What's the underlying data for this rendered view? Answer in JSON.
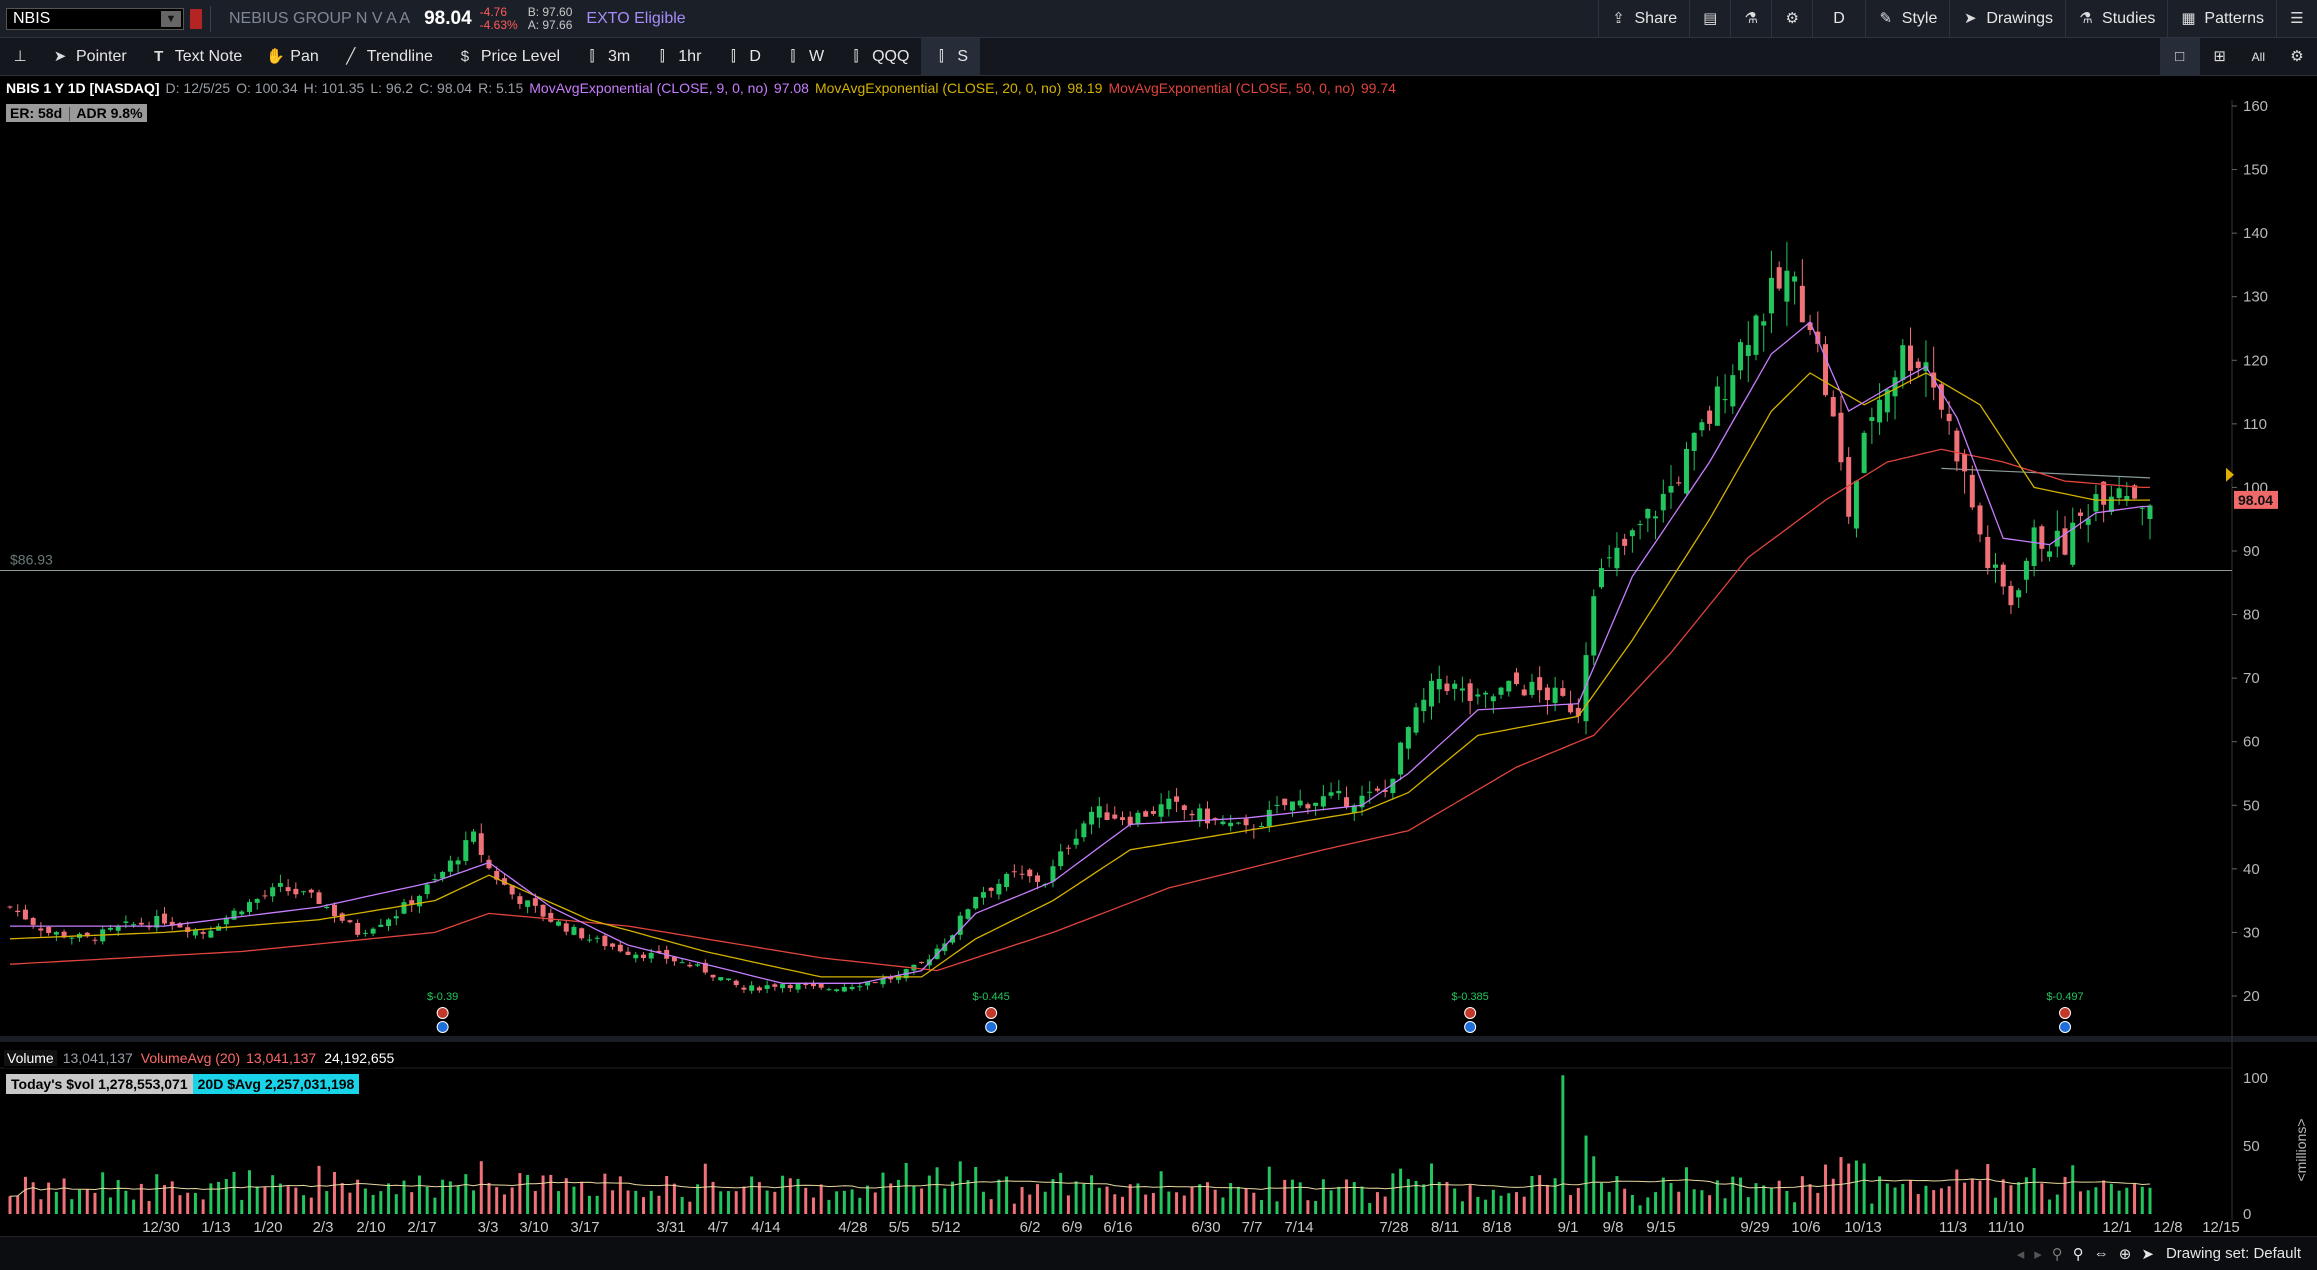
{
  "header": {
    "symbol": "NBIS",
    "company": "NEBIUS GROUP N V A A",
    "last": "98.04",
    "change": "-4.76",
    "change_pct": "-4.63%",
    "bid": "B: 97.60",
    "ask": "A: 97.66",
    "exto": "EXTO Eligible",
    "share": "Share",
    "aggregation": "D",
    "style": "Style",
    "drawings": "Drawings",
    "studies": "Studies",
    "patterns": "Patterns"
  },
  "toolbar": {
    "pointer": "Pointer",
    "text_note": "Text Note",
    "pan": "Pan",
    "trendline": "Trendline",
    "price_level": "Price Level",
    "presets": [
      "3m",
      "1hr",
      "D",
      "W",
      "QQQ",
      "S"
    ],
    "all_label": "All"
  },
  "studies": {
    "title": "NBIS 1 Y 1D [NASDAQ]",
    "date": "D: 12/5/25",
    "open": "O: 100.34",
    "high": "H: 101.35",
    "low": "L: 96.2",
    "close": "C: 98.04",
    "range": "R: 5.15",
    "ema9_label": "MovAvgExponential (CLOSE, 9, 0, no)",
    "ema9_value": "97.08",
    "ema20_label": "MovAvgExponential (CLOSE, 20, 0, no)",
    "ema20_value": "98.19",
    "ema50_label": "MovAvgExponential (CLOSE, 50, 0, no)",
    "ema50_value": "99.74",
    "er": "ER: 58d",
    "adr": "ADR 9.8%",
    "price_level_label": "$86.93",
    "last_price_tag": "98.04"
  },
  "volume": {
    "label": "Volume",
    "value": "13,041,137",
    "avg_label": "VolumeAvg (20)",
    "avg_value": "13,041,137",
    "other_value": "24,192,655",
    "today_dollar": "Today's $vol 1,278,553,071",
    "avg_dollar": "20D $Avg 2,257,031,198",
    "unit_label": "<millions>"
  },
  "dividends": [
    "$-0.39",
    "$-0.445",
    "$-0.385",
    "$-0.497"
  ],
  "status": {
    "drawing_set": "Drawing set: Default"
  },
  "colors": {
    "up": "#22c55e",
    "down": "#f07178",
    "ema9": "#c77dff",
    "ema20": "#d4b200",
    "ema50": "#e0443c",
    "price_tag": "#f06a6a"
  },
  "chart_data": {
    "type": "candlestick",
    "y_ticks": [
      20,
      30,
      40,
      50,
      60,
      70,
      80,
      90,
      100,
      110,
      120,
      130,
      140,
      150,
      160
    ],
    "ylim": [
      16,
      162
    ],
    "x_ticks": [
      "12/30",
      "1/13",
      "1/20",
      "2/3",
      "2/10",
      "2/17",
      "3/3",
      "3/10",
      "3/17",
      "3/31",
      "4/7",
      "4/14",
      "4/28",
      "5/5",
      "5/12",
      "6/2",
      "6/9",
      "6/16",
      "6/30",
      "7/7",
      "7/14",
      "7/28",
      "8/11",
      "8/18",
      "9/1",
      "9/8",
      "9/15",
      "9/29",
      "10/6",
      "10/13",
      "11/3",
      "11/10",
      "12/1",
      "12/8",
      "12/15"
    ],
    "close_path": [
      [
        0,
        34
      ],
      [
        5,
        30
      ],
      [
        10,
        29
      ],
      [
        15,
        31
      ],
      [
        20,
        32
      ],
      [
        25,
        30
      ],
      [
        30,
        34
      ],
      [
        35,
        37
      ],
      [
        40,
        35
      ],
      [
        45,
        30
      ],
      [
        50,
        33
      ],
      [
        55,
        38
      ],
      [
        60,
        45
      ],
      [
        62,
        40
      ],
      [
        65,
        36
      ],
      [
        70,
        32
      ],
      [
        75,
        29
      ],
      [
        80,
        27
      ],
      [
        85,
        26
      ],
      [
        90,
        24
      ],
      [
        95,
        21
      ],
      [
        100,
        22
      ],
      [
        105,
        21
      ],
      [
        110,
        22
      ],
      [
        115,
        23
      ],
      [
        118,
        25
      ],
      [
        122,
        30
      ],
      [
        125,
        36
      ],
      [
        130,
        39
      ],
      [
        134,
        38
      ],
      [
        137,
        44
      ],
      [
        140,
        49
      ],
      [
        145,
        48
      ],
      [
        150,
        50
      ],
      [
        155,
        48
      ],
      [
        160,
        46
      ],
      [
        165,
        50
      ],
      [
        170,
        51
      ],
      [
        175,
        51
      ],
      [
        178,
        52
      ],
      [
        181,
        62
      ],
      [
        185,
        70
      ],
      [
        190,
        66
      ],
      [
        195,
        69
      ],
      [
        200,
        67
      ],
      [
        203,
        65
      ],
      [
        205,
        85
      ],
      [
        210,
        92
      ],
      [
        215,
        100
      ],
      [
        220,
        111
      ],
      [
        225,
        125
      ],
      [
        230,
        133
      ],
      [
        233,
        127
      ],
      [
        236,
        110
      ],
      [
        238,
        96
      ],
      [
        241,
        112
      ],
      [
        245,
        121
      ],
      [
        248,
        120
      ],
      [
        252,
        106
      ],
      [
        256,
        88
      ],
      [
        259,
        82
      ],
      [
        262,
        92
      ],
      [
        266,
        91
      ],
      [
        270,
        99
      ],
      [
        273,
        101
      ],
      [
        276,
        98
      ]
    ],
    "ema9": [
      [
        0,
        31
      ],
      [
        20,
        31
      ],
      [
        40,
        34
      ],
      [
        55,
        38
      ],
      [
        62,
        41
      ],
      [
        70,
        34
      ],
      [
        80,
        28
      ],
      [
        90,
        25
      ],
      [
        100,
        22
      ],
      [
        110,
        22
      ],
      [
        118,
        24
      ],
      [
        125,
        33
      ],
      [
        135,
        38
      ],
      [
        145,
        47
      ],
      [
        160,
        48
      ],
      [
        175,
        50
      ],
      [
        181,
        55
      ],
      [
        190,
        65
      ],
      [
        203,
        66
      ],
      [
        210,
        86
      ],
      [
        220,
        104
      ],
      [
        228,
        121
      ],
      [
        233,
        126
      ],
      [
        238,
        112
      ],
      [
        245,
        117
      ],
      [
        248,
        119
      ],
      [
        252,
        111
      ],
      [
        258,
        92
      ],
      [
        264,
        91
      ],
      [
        270,
        96
      ],
      [
        276,
        97
      ]
    ],
    "ema20": [
      [
        0,
        29
      ],
      [
        20,
        30
      ],
      [
        40,
        32
      ],
      [
        55,
        35
      ],
      [
        62,
        39
      ],
      [
        75,
        32
      ],
      [
        90,
        27
      ],
      [
        105,
        23
      ],
      [
        118,
        23
      ],
      [
        125,
        29
      ],
      [
        135,
        35
      ],
      [
        145,
        43
      ],
      [
        160,
        46
      ],
      [
        175,
        49
      ],
      [
        181,
        52
      ],
      [
        190,
        61
      ],
      [
        203,
        64
      ],
      [
        210,
        76
      ],
      [
        220,
        95
      ],
      [
        228,
        112
      ],
      [
        233,
        118
      ],
      [
        240,
        113
      ],
      [
        248,
        118
      ],
      [
        255,
        113
      ],
      [
        262,
        100
      ],
      [
        270,
        98
      ],
      [
        276,
        98
      ]
    ],
    "ema50": [
      [
        0,
        25
      ],
      [
        30,
        27
      ],
      [
        55,
        30
      ],
      [
        62,
        33
      ],
      [
        80,
        31
      ],
      [
        105,
        26
      ],
      [
        120,
        24
      ],
      [
        135,
        30
      ],
      [
        150,
        37
      ],
      [
        170,
        43
      ],
      [
        181,
        46
      ],
      [
        195,
        56
      ],
      [
        205,
        61
      ],
      [
        215,
        74
      ],
      [
        225,
        89
      ],
      [
        235,
        98
      ],
      [
        243,
        104
      ],
      [
        250,
        106
      ],
      [
        258,
        104
      ],
      [
        266,
        101
      ],
      [
        276,
        100
      ]
    ],
    "price_level": 86.93,
    "resistance_line": [
      [
        250,
        103
      ],
      [
        277,
        101.5
      ]
    ],
    "volume_ticks": [
      0,
      50,
      100
    ],
    "volume_max_millions": 108
  }
}
